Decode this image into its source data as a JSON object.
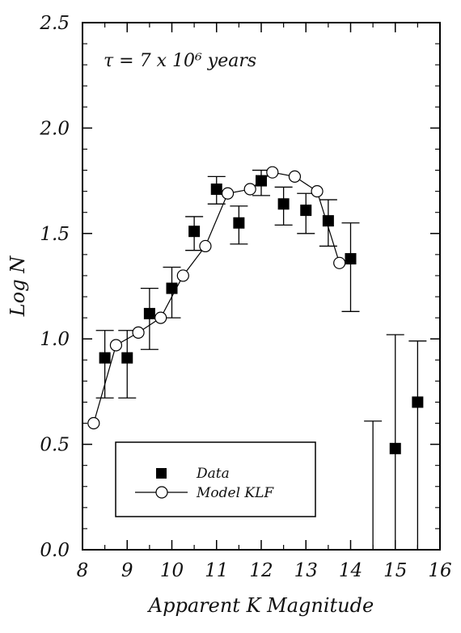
{
  "chart_data": {
    "type": "scatter",
    "xlabel": "Apparent K Magnitude",
    "ylabel": "Log N",
    "xlim": [
      8,
      16
    ],
    "ylim": [
      0.0,
      2.5
    ],
    "xticks": [
      "8",
      "9",
      "10",
      "11",
      "12",
      "13",
      "14",
      "15",
      "16"
    ],
    "yticks": [
      "0.0",
      "0.5",
      "1.0",
      "1.5",
      "2.0",
      "2.5"
    ],
    "annotation": "τ = 7 x 10⁶ years",
    "legend": {
      "position": "bottom-left",
      "entries": [
        "Data",
        "Model KLF"
      ]
    },
    "series": [
      {
        "name": "Data",
        "marker": "filled-square",
        "points": [
          {
            "x": 8.5,
            "y": 0.91,
            "ylo": 0.72,
            "yhi": 1.04
          },
          {
            "x": 9.0,
            "y": 0.91,
            "ylo": 0.72,
            "yhi": 1.04
          },
          {
            "x": 9.5,
            "y": 1.12,
            "ylo": 0.95,
            "yhi": 1.24
          },
          {
            "x": 10.0,
            "y": 1.24,
            "ylo": 1.1,
            "yhi": 1.34
          },
          {
            "x": 10.5,
            "y": 1.51,
            "ylo": 1.42,
            "yhi": 1.58
          },
          {
            "x": 11.0,
            "y": 1.71,
            "ylo": 1.64,
            "yhi": 1.77
          },
          {
            "x": 11.5,
            "y": 1.55,
            "ylo": 1.45,
            "yhi": 1.63
          },
          {
            "x": 12.0,
            "y": 1.75,
            "ylo": 1.68,
            "yhi": 1.8
          },
          {
            "x": 12.5,
            "y": 1.64,
            "ylo": 1.54,
            "yhi": 1.72
          },
          {
            "x": 13.0,
            "y": 1.61,
            "ylo": 1.5,
            "yhi": 1.69
          },
          {
            "x": 13.5,
            "y": 1.56,
            "ylo": 1.44,
            "yhi": 1.66
          },
          {
            "x": 14.0,
            "y": 1.38,
            "ylo": 1.13,
            "yhi": 1.55
          },
          {
            "x": 15.0,
            "y": 0.48,
            "ylo": 0.0,
            "yhi": 1.02
          },
          {
            "x": 15.5,
            "y": 0.7,
            "ylo": 0.0,
            "yhi": 0.99
          }
        ],
        "upper_limits": [
          {
            "x": 14.5,
            "yhi": 0.61
          }
        ]
      },
      {
        "name": "Model KLF",
        "marker": "open-circle",
        "x": [
          8.25,
          8.75,
          9.25,
          9.75,
          10.25,
          10.75,
          11.25,
          11.75,
          12.25,
          12.75,
          13.25,
          13.75
        ],
        "y": [
          0.6,
          0.97,
          1.03,
          1.1,
          1.3,
          1.44,
          1.69,
          1.71,
          1.79,
          1.77,
          1.7,
          1.36
        ]
      }
    ]
  }
}
